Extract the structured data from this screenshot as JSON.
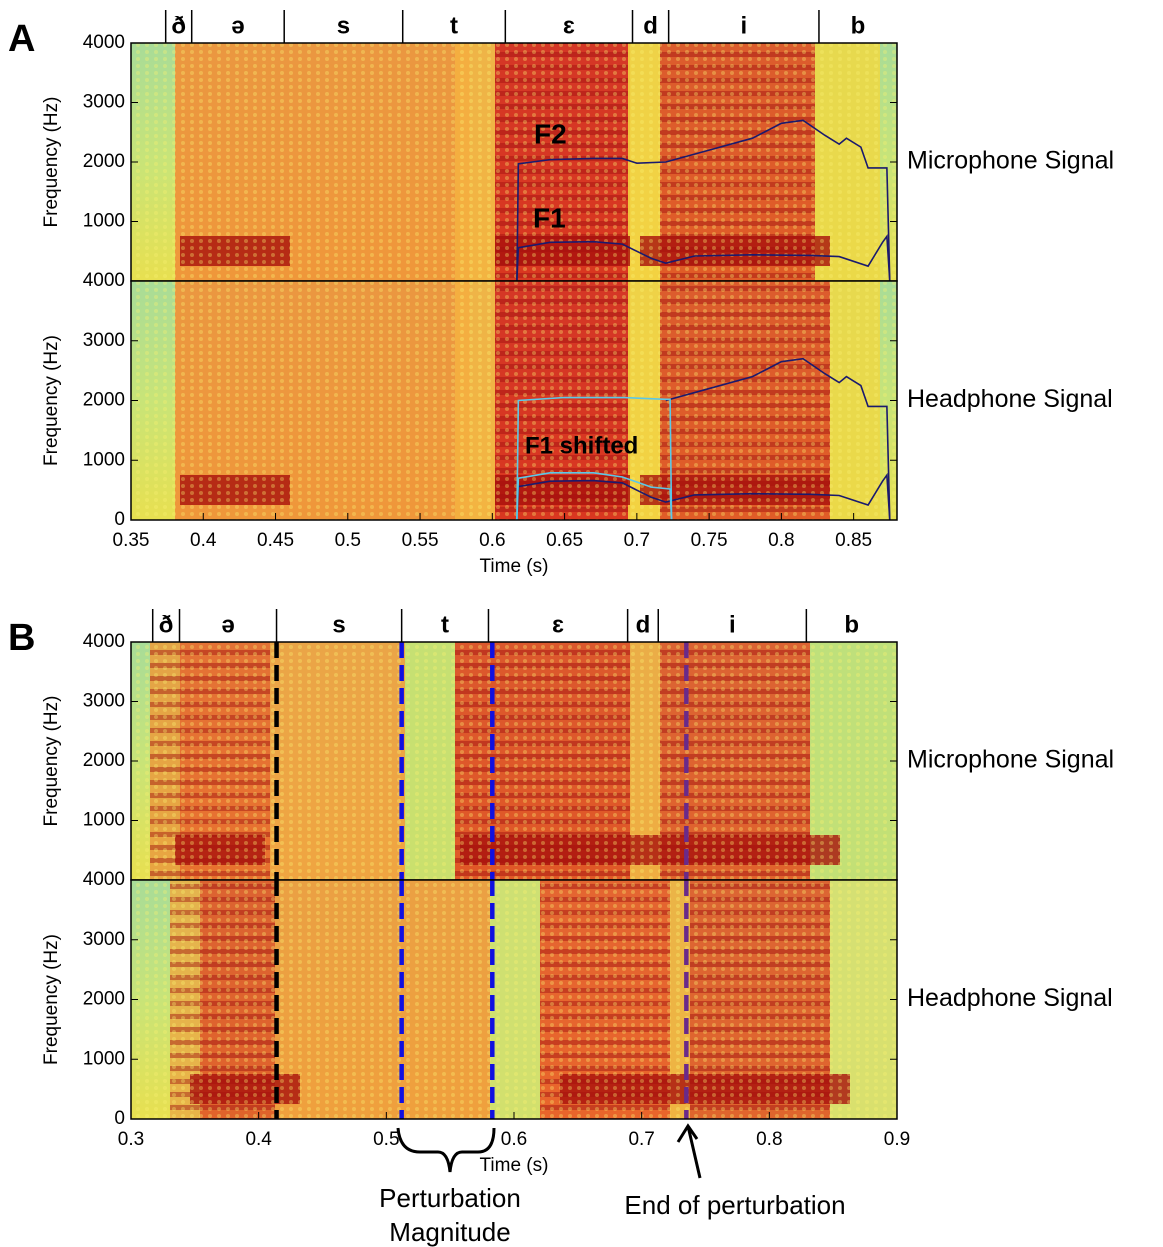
{
  "chart_data": [
    {
      "type": "spectrogram",
      "panel_label": "A",
      "ylabel": "Frequency (Hz)",
      "signal": "Microphone Signal",
      "xlim": [
        0.35,
        0.88
      ],
      "ylim": [
        0,
        4000
      ],
      "yticks": [
        1000,
        2000,
        3000,
        4000
      ],
      "phonemes": {
        "labels": [
          "ð",
          "ə",
          "s",
          "t",
          "ɛ",
          "d",
          "i",
          "b"
        ],
        "boundaries": [
          0.374,
          0.392,
          0.456,
          0.538,
          0.609,
          0.697,
          0.722,
          0.826
        ]
      },
      "annotations": [
        "F2",
        "F1"
      ],
      "series": [
        {
          "color": "#1a1a6e",
          "x": [
            0.617,
            0.618,
            0.64,
            0.67,
            0.69,
            0.7,
            0.72,
            0.75,
            0.78,
            0.8,
            0.815,
            0.83,
            0.84,
            0.845,
            0.855,
            0.86,
            0.873,
            0.875
          ],
          "values": [
            0,
            1970,
            2040,
            2060,
            2060,
            1980,
            2000,
            2200,
            2400,
            2650,
            2700,
            2450,
            2300,
            2400,
            2250,
            1900,
            1900,
            0
          ]
        },
        {
          "color": "#1a1a6e",
          "x": [
            0.617,
            0.618,
            0.64,
            0.67,
            0.69,
            0.71,
            0.72,
            0.74,
            0.78,
            0.82,
            0.84,
            0.86,
            0.87,
            0.873,
            0.875
          ],
          "values": [
            0,
            560,
            650,
            660,
            620,
            380,
            300,
            420,
            440,
            430,
            410,
            250,
            650,
            750,
            0
          ]
        }
      ]
    },
    {
      "type": "spectrogram",
      "ylabel": "Frequency (Hz)",
      "signal": "Headphone Signal",
      "xlabel": "Time (s)",
      "xlim": [
        0.35,
        0.88
      ],
      "ylim": [
        0,
        4000
      ],
      "yticks": [
        0,
        1000,
        2000,
        3000,
        4000
      ],
      "xticks": [
        0.35,
        0.4,
        0.45,
        0.5,
        0.55,
        0.6,
        0.65,
        0.7,
        0.75,
        0.8,
        0.85
      ],
      "annotations": [
        "F1 shifted"
      ],
      "series": [
        {
          "color": "#1a1a6e",
          "x": [
            0.72,
            0.75,
            0.78,
            0.8,
            0.815,
            0.83,
            0.84,
            0.845,
            0.855,
            0.86,
            0.873,
            0.875
          ],
          "values": [
            2000,
            2200,
            2400,
            2650,
            2700,
            2450,
            2300,
            2400,
            2250,
            1900,
            1900,
            0
          ]
        },
        {
          "color": "#1a1a6e",
          "x": [
            0.617,
            0.618,
            0.64,
            0.67,
            0.69,
            0.71,
            0.72,
            0.74,
            0.78,
            0.82,
            0.84,
            0.86,
            0.87,
            0.873,
            0.875
          ],
          "values": [
            0,
            560,
            650,
            660,
            620,
            380,
            300,
            420,
            440,
            430,
            410,
            250,
            650,
            750,
            0
          ]
        },
        {
          "color": "#5bc8e8",
          "x": [
            0.617,
            0.618,
            0.65,
            0.69,
            0.72,
            0.723,
            0.724
          ],
          "values": [
            0,
            2000,
            2050,
            2050,
            2020,
            2020,
            0
          ]
        },
        {
          "color": "#5bc8e8",
          "x": [
            0.617,
            0.618,
            0.64,
            0.67,
            0.69,
            0.71,
            0.723,
            0.724
          ],
          "values": [
            0,
            700,
            790,
            790,
            720,
            550,
            520,
            0
          ]
        }
      ]
    },
    {
      "type": "spectrogram",
      "panel_label": "B",
      "ylabel": "Frequency (Hz)",
      "signal": "Microphone Signal",
      "xlim": [
        0.3,
        0.9
      ],
      "ylim": [
        0,
        4000
      ],
      "yticks": [
        1000,
        2000,
        3000,
        4000
      ],
      "phonemes": {
        "labels": [
          "ð",
          "ə",
          "s",
          "t",
          "ɛ",
          "d",
          "i",
          "b"
        ],
        "boundaries": [
          0.317,
          0.338,
          0.414,
          0.512,
          0.58,
          0.689,
          0.713,
          0.829
        ]
      },
      "markers": [
        {
          "x": 0.414,
          "color": "#000000"
        },
        {
          "x": 0.512,
          "color": "#1010e0"
        },
        {
          "x": 0.583,
          "color": "#1010e0"
        },
        {
          "x": 0.735,
          "color": "#6a2a8a"
        }
      ]
    },
    {
      "type": "spectrogram",
      "ylabel": "Frequency (Hz)",
      "signal": "Headphone Signal",
      "xlabel": "Time (s)",
      "xlim": [
        0.3,
        0.9
      ],
      "ylim": [
        0,
        4000
      ],
      "yticks": [
        0,
        1000,
        2000,
        3000,
        4000
      ],
      "xticks": [
        0.3,
        0.4,
        0.5,
        0.6,
        0.7,
        0.8,
        0.9
      ],
      "markers": [
        {
          "x": 0.414,
          "color": "#000000"
        },
        {
          "x": 0.512,
          "color": "#1010e0"
        },
        {
          "x": 0.583,
          "color": "#1010e0"
        },
        {
          "x": 0.735,
          "color": "#6a2a8a"
        }
      ],
      "annotations": [
        "Perturbation Magnitude",
        "End of perturbation"
      ]
    }
  ]
}
